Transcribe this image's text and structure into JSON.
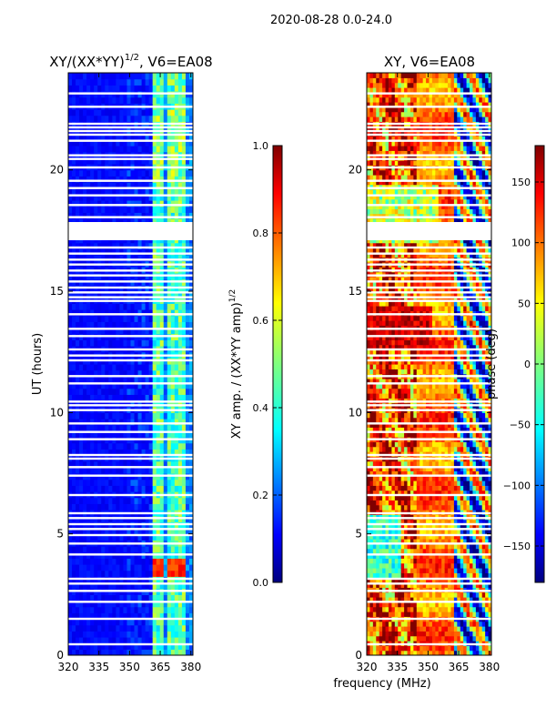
{
  "figure": {
    "suptitle": "2020-08-28 0.0-24.0",
    "shared_xlabel": "frequency (MHz)"
  },
  "colors": {
    "jet": [
      "#00007f",
      "#0000ff",
      "#007fff",
      "#00ffff",
      "#7fff7f",
      "#ffff00",
      "#ff7f00",
      "#ff0000",
      "#7f0000"
    ],
    "gap": "#ffffff",
    "axis": "#000000"
  },
  "chart_data": [
    {
      "type": "heatmap",
      "panel": "amplitude",
      "title_main": "XY/(XX*YY)",
      "title_sup": "1/2",
      "title_tail": ", V6=EA08",
      "ylabel": "UT (hours)",
      "xlim": [
        320,
        381
      ],
      "ylim": [
        0,
        24
      ],
      "x_ticks": [
        "320",
        "335",
        "350",
        "365",
        "380"
      ],
      "x_tick_values": [
        320,
        335,
        350,
        365,
        380
      ],
      "y_ticks": [
        "0",
        "5",
        "10",
        "15",
        "20"
      ],
      "y_tick_values": [
        0,
        5,
        10,
        15,
        20
      ],
      "colorbar": {
        "label_main": "XY amp. / (XX*YY amp)",
        "label_sup": "1/2",
        "range": [
          0.0,
          1.0
        ],
        "ticks": [
          "0.0",
          "0.2",
          "0.4",
          "0.6",
          "0.8",
          "1.0"
        ],
        "tick_values": [
          0.0,
          0.2,
          0.4,
          0.6,
          0.8,
          1.0
        ]
      },
      "bright_channels_mhz": [
        [
          362,
          367
        ],
        [
          368,
          373
        ],
        [
          374,
          378
        ]
      ],
      "flare_band_hours": [
        3.2,
        4.1
      ]
    },
    {
      "type": "heatmap",
      "panel": "phase",
      "title": "XY, V6=EA08",
      "xlim": [
        320,
        381
      ],
      "ylim": [
        0,
        24
      ],
      "x_ticks": [
        "320",
        "335",
        "350",
        "365",
        "380"
      ],
      "x_tick_values": [
        320,
        335,
        350,
        365,
        380
      ],
      "y_ticks": [
        "0",
        "5",
        "10",
        "15",
        "20"
      ],
      "y_tick_values": [
        0,
        5,
        10,
        15,
        20
      ],
      "colorbar": {
        "label": "phase (deg)",
        "range": [
          -180,
          180
        ],
        "ticks": [
          "−150",
          "−100",
          "−50",
          "0",
          "50",
          "100",
          "150"
        ],
        "tick_values": [
          -150,
          -100,
          -50,
          0,
          50,
          100,
          150
        ]
      }
    }
  ],
  "gap_hours": [
    0.45,
    1.5,
    2.2,
    2.65,
    2.95,
    3.15,
    4.15,
    4.6,
    4.95,
    5.2,
    5.4,
    5.65,
    5.85,
    6.6,
    7.4,
    7.75,
    8.1,
    8.25,
    8.9,
    9.2,
    9.55,
    10.1,
    10.3,
    10.45,
    11.2,
    11.5,
    12.15,
    12.35,
    12.6,
    13.15,
    13.45,
    14.05,
    14.6,
    14.75,
    14.95,
    15.15,
    15.4,
    15.65,
    15.85,
    16.1,
    16.3,
    16.55,
    16.8,
    17.15,
    17.3,
    17.45,
    17.6,
    17.75,
    18.05,
    18.55,
    18.95,
    19.25,
    19.55,
    20.1,
    20.45,
    20.6,
    21.2,
    21.45,
    21.6,
    21.75,
    21.9,
    22.6,
    23.15
  ]
}
